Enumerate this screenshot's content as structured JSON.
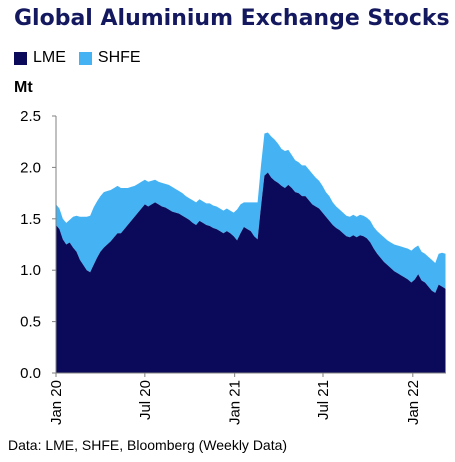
{
  "chart_data": {
    "type": "area",
    "stacked": true,
    "title": "Global Aluminium Exchange Stocks",
    "ylabel": "Mt",
    "ylim": [
      0,
      2.5
    ],
    "yticks": [
      "0.0",
      "0.5",
      "1.0",
      "1.5",
      "2.0",
      "2.5"
    ],
    "xlim": [
      "2020-01-01",
      "2022-03-10"
    ],
    "xticks": [
      {
        "date": "2020-01-01",
        "label": "Jan 20"
      },
      {
        "date": "2020-07-01",
        "label": "Jul 20"
      },
      {
        "date": "2021-01-01",
        "label": "Jan 21"
      },
      {
        "date": "2021-07-01",
        "label": "Jul 21"
      },
      {
        "date": "2022-01-01",
        "label": "Jan 22"
      }
    ],
    "grid": false,
    "legend_position": "top-left",
    "series": [
      {
        "name": "LME",
        "color": "#0b0a5a",
        "points": [
          [
            "2020-01-01",
            1.44
          ],
          [
            "2020-01-08",
            1.4
          ],
          [
            "2020-01-15",
            1.3
          ],
          [
            "2020-01-22",
            1.25
          ],
          [
            "2020-01-29",
            1.27
          ],
          [
            "2020-02-05",
            1.22
          ],
          [
            "2020-02-12",
            1.18
          ],
          [
            "2020-02-19",
            1.1
          ],
          [
            "2020-02-26",
            1.05
          ],
          [
            "2020-03-04",
            1.0
          ],
          [
            "2020-03-11",
            0.98
          ],
          [
            "2020-03-18",
            1.05
          ],
          [
            "2020-03-25",
            1.12
          ],
          [
            "2020-04-01",
            1.18
          ],
          [
            "2020-04-08",
            1.22
          ],
          [
            "2020-04-15",
            1.25
          ],
          [
            "2020-04-22",
            1.28
          ],
          [
            "2020-04-29",
            1.32
          ],
          [
            "2020-05-06",
            1.36
          ],
          [
            "2020-05-13",
            1.36
          ],
          [
            "2020-05-20",
            1.4
          ],
          [
            "2020-05-27",
            1.44
          ],
          [
            "2020-06-03",
            1.48
          ],
          [
            "2020-06-10",
            1.52
          ],
          [
            "2020-06-17",
            1.56
          ],
          [
            "2020-06-24",
            1.6
          ],
          [
            "2020-07-01",
            1.64
          ],
          [
            "2020-07-08",
            1.62
          ],
          [
            "2020-07-15",
            1.64
          ],
          [
            "2020-07-22",
            1.66
          ],
          [
            "2020-07-29",
            1.64
          ],
          [
            "2020-08-05",
            1.62
          ],
          [
            "2020-08-12",
            1.61
          ],
          [
            "2020-08-19",
            1.59
          ],
          [
            "2020-08-26",
            1.57
          ],
          [
            "2020-09-02",
            1.56
          ],
          [
            "2020-09-09",
            1.55
          ],
          [
            "2020-09-16",
            1.53
          ],
          [
            "2020-09-23",
            1.51
          ],
          [
            "2020-09-30",
            1.49
          ],
          [
            "2020-10-07",
            1.46
          ],
          [
            "2020-10-14",
            1.44
          ],
          [
            "2020-10-21",
            1.48
          ],
          [
            "2020-10-28",
            1.46
          ],
          [
            "2020-11-04",
            1.44
          ],
          [
            "2020-11-11",
            1.43
          ],
          [
            "2020-11-18",
            1.41
          ],
          [
            "2020-11-25",
            1.4
          ],
          [
            "2020-12-02",
            1.38
          ],
          [
            "2020-12-09",
            1.36
          ],
          [
            "2020-12-16",
            1.38
          ],
          [
            "2020-12-23",
            1.36
          ],
          [
            "2020-12-30",
            1.33
          ],
          [
            "2021-01-06",
            1.29
          ],
          [
            "2021-01-13",
            1.36
          ],
          [
            "2021-01-20",
            1.42
          ],
          [
            "2021-01-27",
            1.4
          ],
          [
            "2021-02-03",
            1.38
          ],
          [
            "2021-02-10",
            1.33
          ],
          [
            "2021-02-17",
            1.3
          ],
          [
            "2021-02-24",
            1.62
          ],
          [
            "2021-03-03",
            1.92
          ],
          [
            "2021-03-10",
            1.95
          ],
          [
            "2021-03-17",
            1.9
          ],
          [
            "2021-03-24",
            1.87
          ],
          [
            "2021-03-31",
            1.85
          ],
          [
            "2021-04-07",
            1.82
          ],
          [
            "2021-04-14",
            1.8
          ],
          [
            "2021-04-21",
            1.83
          ],
          [
            "2021-04-28",
            1.8
          ],
          [
            "2021-05-05",
            1.76
          ],
          [
            "2021-05-12",
            1.75
          ],
          [
            "2021-05-19",
            1.72
          ],
          [
            "2021-05-26",
            1.72
          ],
          [
            "2021-06-02",
            1.68
          ],
          [
            "2021-06-09",
            1.64
          ],
          [
            "2021-06-16",
            1.62
          ],
          [
            "2021-06-23",
            1.6
          ],
          [
            "2021-06-30",
            1.56
          ],
          [
            "2021-07-07",
            1.52
          ],
          [
            "2021-07-14",
            1.48
          ],
          [
            "2021-07-21",
            1.44
          ],
          [
            "2021-07-28",
            1.41
          ],
          [
            "2021-08-04",
            1.39
          ],
          [
            "2021-08-11",
            1.36
          ],
          [
            "2021-08-18",
            1.33
          ],
          [
            "2021-08-25",
            1.32
          ],
          [
            "2021-09-01",
            1.34
          ],
          [
            "2021-09-08",
            1.32
          ],
          [
            "2021-09-15",
            1.34
          ],
          [
            "2021-09-22",
            1.33
          ],
          [
            "2021-09-29",
            1.31
          ],
          [
            "2021-10-06",
            1.27
          ],
          [
            "2021-10-13",
            1.21
          ],
          [
            "2021-10-20",
            1.16
          ],
          [
            "2021-10-27",
            1.12
          ],
          [
            "2021-11-03",
            1.08
          ],
          [
            "2021-11-10",
            1.05
          ],
          [
            "2021-11-17",
            1.02
          ],
          [
            "2021-11-24",
            0.99
          ],
          [
            "2021-12-01",
            0.97
          ],
          [
            "2021-12-08",
            0.95
          ],
          [
            "2021-12-15",
            0.93
          ],
          [
            "2021-12-22",
            0.91
          ],
          [
            "2021-12-29",
            0.88
          ],
          [
            "2022-01-05",
            0.91
          ],
          [
            "2022-01-12",
            0.96
          ],
          [
            "2022-01-19",
            0.9
          ],
          [
            "2022-01-26",
            0.88
          ],
          [
            "2022-02-02",
            0.84
          ],
          [
            "2022-02-09",
            0.8
          ],
          [
            "2022-02-16",
            0.78
          ],
          [
            "2022-02-23",
            0.86
          ],
          [
            "2022-03-02",
            0.84
          ],
          [
            "2022-03-09",
            0.82
          ]
        ]
      },
      {
        "name": "SHFE",
        "color": "#45b3f3",
        "points": [
          [
            "2020-01-01",
            0.2
          ],
          [
            "2020-01-08",
            0.2
          ],
          [
            "2020-01-15",
            0.2
          ],
          [
            "2020-01-22",
            0.21
          ],
          [
            "2020-01-29",
            0.22
          ],
          [
            "2020-02-05",
            0.3
          ],
          [
            "2020-02-12",
            0.35
          ],
          [
            "2020-02-19",
            0.42
          ],
          [
            "2020-02-26",
            0.47
          ],
          [
            "2020-03-04",
            0.52
          ],
          [
            "2020-03-11",
            0.55
          ],
          [
            "2020-03-18",
            0.56
          ],
          [
            "2020-03-25",
            0.55
          ],
          [
            "2020-04-01",
            0.54
          ],
          [
            "2020-04-08",
            0.54
          ],
          [
            "2020-04-15",
            0.52
          ],
          [
            "2020-04-22",
            0.5
          ],
          [
            "2020-04-29",
            0.48
          ],
          [
            "2020-05-06",
            0.46
          ],
          [
            "2020-05-13",
            0.44
          ],
          [
            "2020-05-20",
            0.4
          ],
          [
            "2020-05-27",
            0.36
          ],
          [
            "2020-06-03",
            0.33
          ],
          [
            "2020-06-10",
            0.3
          ],
          [
            "2020-06-17",
            0.28
          ],
          [
            "2020-06-24",
            0.26
          ],
          [
            "2020-07-01",
            0.24
          ],
          [
            "2020-07-08",
            0.24
          ],
          [
            "2020-07-15",
            0.23
          ],
          [
            "2020-07-22",
            0.22
          ],
          [
            "2020-07-29",
            0.22
          ],
          [
            "2020-08-05",
            0.23
          ],
          [
            "2020-08-12",
            0.23
          ],
          [
            "2020-08-19",
            0.24
          ],
          [
            "2020-08-26",
            0.24
          ],
          [
            "2020-09-02",
            0.23
          ],
          [
            "2020-09-09",
            0.22
          ],
          [
            "2020-09-16",
            0.22
          ],
          [
            "2020-09-23",
            0.21
          ],
          [
            "2020-09-30",
            0.21
          ],
          [
            "2020-10-07",
            0.22
          ],
          [
            "2020-10-14",
            0.22
          ],
          [
            "2020-10-21",
            0.21
          ],
          [
            "2020-10-28",
            0.21
          ],
          [
            "2020-11-04",
            0.21
          ],
          [
            "2020-11-11",
            0.22
          ],
          [
            "2020-11-18",
            0.22
          ],
          [
            "2020-11-25",
            0.22
          ],
          [
            "2020-12-02",
            0.22
          ],
          [
            "2020-12-09",
            0.22
          ],
          [
            "2020-12-16",
            0.22
          ],
          [
            "2020-12-23",
            0.22
          ],
          [
            "2020-12-30",
            0.23
          ],
          [
            "2021-01-06",
            0.3
          ],
          [
            "2021-01-13",
            0.28
          ],
          [
            "2021-01-20",
            0.24
          ],
          [
            "2021-01-27",
            0.26
          ],
          [
            "2021-02-03",
            0.28
          ],
          [
            "2021-02-10",
            0.33
          ],
          [
            "2021-02-17",
            0.36
          ],
          [
            "2021-02-24",
            0.4
          ],
          [
            "2021-03-03",
            0.41
          ],
          [
            "2021-03-10",
            0.39
          ],
          [
            "2021-03-17",
            0.4
          ],
          [
            "2021-03-24",
            0.4
          ],
          [
            "2021-03-31",
            0.38
          ],
          [
            "2021-04-07",
            0.36
          ],
          [
            "2021-04-14",
            0.36
          ],
          [
            "2021-04-21",
            0.34
          ],
          [
            "2021-04-28",
            0.32
          ],
          [
            "2021-05-05",
            0.31
          ],
          [
            "2021-05-12",
            0.3
          ],
          [
            "2021-05-19",
            0.3
          ],
          [
            "2021-05-26",
            0.3
          ],
          [
            "2021-06-02",
            0.3
          ],
          [
            "2021-06-09",
            0.3
          ],
          [
            "2021-06-16",
            0.28
          ],
          [
            "2021-06-23",
            0.27
          ],
          [
            "2021-06-30",
            0.26
          ],
          [
            "2021-07-07",
            0.24
          ],
          [
            "2021-07-14",
            0.24
          ],
          [
            "2021-07-21",
            0.22
          ],
          [
            "2021-07-28",
            0.21
          ],
          [
            "2021-08-04",
            0.2
          ],
          [
            "2021-08-11",
            0.2
          ],
          [
            "2021-08-18",
            0.2
          ],
          [
            "2021-08-25",
            0.2
          ],
          [
            "2021-09-01",
            0.2
          ],
          [
            "2021-09-08",
            0.2
          ],
          [
            "2021-09-15",
            0.2
          ],
          [
            "2021-09-22",
            0.2
          ],
          [
            "2021-09-29",
            0.2
          ],
          [
            "2021-10-06",
            0.21
          ],
          [
            "2021-10-13",
            0.21
          ],
          [
            "2021-10-20",
            0.22
          ],
          [
            "2021-10-27",
            0.23
          ],
          [
            "2021-11-03",
            0.24
          ],
          [
            "2021-11-10",
            0.24
          ],
          [
            "2021-11-17",
            0.25
          ],
          [
            "2021-11-24",
            0.26
          ],
          [
            "2021-12-01",
            0.27
          ],
          [
            "2021-12-08",
            0.28
          ],
          [
            "2021-12-15",
            0.29
          ],
          [
            "2021-12-22",
            0.3
          ],
          [
            "2021-12-29",
            0.31
          ],
          [
            "2022-01-05",
            0.31
          ],
          [
            "2022-01-12",
            0.28
          ],
          [
            "2022-01-19",
            0.28
          ],
          [
            "2022-01-26",
            0.28
          ],
          [
            "2022-02-02",
            0.29
          ],
          [
            "2022-02-09",
            0.3
          ],
          [
            "2022-02-16",
            0.29
          ],
          [
            "2022-02-23",
            0.3
          ],
          [
            "2022-03-02",
            0.33
          ],
          [
            "2022-03-09",
            0.34
          ]
        ]
      }
    ]
  },
  "source_note": "Data: LME, SHFE, Bloomberg (Weekly Data)"
}
